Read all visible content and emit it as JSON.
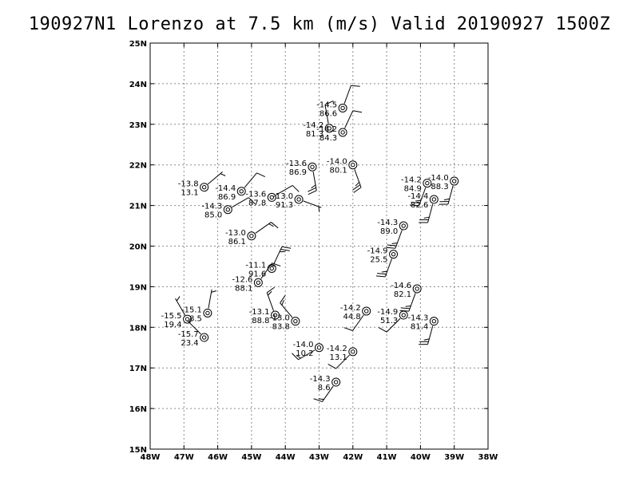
{
  "chart_data": {
    "type": "scatter",
    "title": "190927N1 Lorenzo at 7.5 km (m/s) Valid 20190927 1500Z",
    "xlim": [
      -48,
      -38
    ],
    "ylim": [
      15,
      25
    ],
    "grid": true,
    "x_tick_labels": [
      "48W",
      "47W",
      "46W",
      "45W",
      "44W",
      "43W",
      "42W",
      "41W",
      "40W",
      "39W",
      "38W"
    ],
    "y_tick_labels": [
      "15N",
      "16N",
      "17N",
      "18N",
      "19N",
      "20N",
      "21N",
      "22N",
      "23N",
      "24N",
      "25N"
    ],
    "observations": [
      {
        "lon": -42.3,
        "lat": 23.4,
        "temp": "-14.5",
        "dir": 20,
        "spd": 10,
        "val": "86.6"
      },
      {
        "lon": -42.7,
        "lat": 22.9,
        "temp": "-14.2",
        "dir": 350,
        "spd": 10,
        "val": "81.3"
      },
      {
        "lon": -42.3,
        "lat": 22.8,
        "temp": "-14.2",
        "dir": 25,
        "spd": 10,
        "val": "84.3"
      },
      {
        "lon": -42.0,
        "lat": 22.0,
        "temp": "-14.0",
        "dir": 160,
        "spd": 25,
        "val": "80.1"
      },
      {
        "lon": -43.2,
        "lat": 21.95,
        "temp": "-13.6",
        "dir": 170,
        "spd": 25,
        "val": "86.9"
      },
      {
        "lon": -46.4,
        "lat": 21.45,
        "temp": "-13.8",
        "dir": 50,
        "spd": 5,
        "val": "13.1"
      },
      {
        "lon": -45.3,
        "lat": 21.35,
        "temp": "-14.4",
        "dir": 40,
        "spd": 10,
        "val": "86.9"
      },
      {
        "lon": -44.4,
        "lat": 21.2,
        "temp": "-13.6",
        "dir": 60,
        "spd": 10,
        "val": "87.8"
      },
      {
        "lon": -43.6,
        "lat": 21.15,
        "temp": "-13.0",
        "dir": 110,
        "spd": 5,
        "val": "91.3"
      },
      {
        "lon": -45.7,
        "lat": 20.9,
        "temp": "-14.3",
        "dir": 60,
        "spd": 10,
        "val": "85.0"
      },
      {
        "lon": -45.0,
        "lat": 20.25,
        "temp": "-13.0",
        "dir": 55,
        "spd": 15,
        "val": "86.1"
      },
      {
        "lon": -44.4,
        "lat": 19.45,
        "temp": "-11.1",
        "dir": 25,
        "spd": 25,
        "val": "91.6"
      },
      {
        "lon": -44.8,
        "lat": 19.1,
        "temp": "-12.6",
        "dir": 35,
        "spd": 15,
        "val": "88.1"
      },
      {
        "lon": -46.3,
        "lat": 18.35,
        "temp": "-15.1",
        "dir": 10,
        "spd": 5,
        "val": "18.5"
      },
      {
        "lon": -46.9,
        "lat": 18.2,
        "temp": "-15.5",
        "dir": 330,
        "spd": 5,
        "val": "19.4"
      },
      {
        "lon": -46.4,
        "lat": 17.75,
        "temp": "-15.7",
        "dir": 315,
        "spd": 5,
        "val": "23.4"
      },
      {
        "lon": -44.3,
        "lat": 18.3,
        "temp": "-13.1",
        "dir": 340,
        "spd": 15,
        "val": "88.8"
      },
      {
        "lon": -43.7,
        "lat": 18.15,
        "temp": "-13.0",
        "dir": 320,
        "spd": 15,
        "val": "83.8"
      },
      {
        "lon": -41.6,
        "lat": 18.4,
        "temp": "-14.2",
        "dir": 215,
        "spd": 10,
        "val": "44.8"
      },
      {
        "lon": -40.5,
        "lat": 18.3,
        "temp": "-14.9",
        "dir": 225,
        "spd": 10,
        "val": "51.3"
      },
      {
        "lon": -39.6,
        "lat": 18.15,
        "temp": "-14.3",
        "dir": 195,
        "spd": 25,
        "val": "81.4"
      },
      {
        "lon": -40.1,
        "lat": 18.95,
        "temp": "-14.6",
        "dir": 200,
        "spd": 25,
        "val": "82.1"
      },
      {
        "lon": -40.8,
        "lat": 19.8,
        "temp": "-14.9",
        "dir": 200,
        "spd": 25,
        "val": "25.5"
      },
      {
        "lon": -40.5,
        "lat": 20.5,
        "temp": "-14.3",
        "dir": 200,
        "spd": 25,
        "val": "89.0"
      },
      {
        "lon": -39.6,
        "lat": 21.15,
        "temp": "-14.4",
        "dir": 195,
        "spd": 25,
        "val": "82.6"
      },
      {
        "lon": -39.8,
        "lat": 21.55,
        "temp": "-14.2",
        "dir": 200,
        "spd": 25,
        "val": "84.9"
      },
      {
        "lon": -39.0,
        "lat": 21.6,
        "temp": "-14.0",
        "dir": 195,
        "spd": 25,
        "val": "88.3"
      },
      {
        "lon": -43.0,
        "lat": 17.5,
        "temp": "-14.0",
        "dir": 240,
        "spd": 15,
        "val": "10.2"
      },
      {
        "lon": -42.0,
        "lat": 17.4,
        "temp": "-14.2",
        "dir": 225,
        "spd": 10,
        "val": "13.1"
      },
      {
        "lon": -42.5,
        "lat": 16.65,
        "temp": "-14.3",
        "dir": 215,
        "spd": 15,
        "val": "8.6"
      }
    ]
  },
  "style": {
    "axis_color": "#000000",
    "grid_color": "#8a8a8a",
    "barb_color": "#000000"
  }
}
